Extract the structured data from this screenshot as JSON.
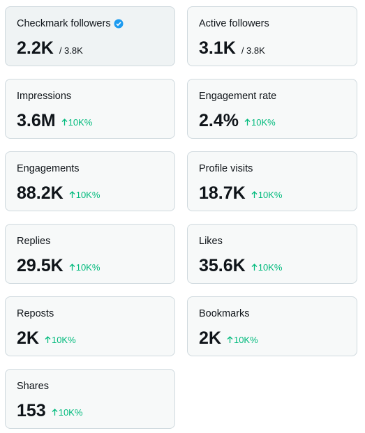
{
  "cards": [
    {
      "label": "Checkmark followers",
      "value": "2.2K",
      "total": "/ 3.8K"
    },
    {
      "label": "Active followers",
      "value": "3.1K",
      "total": "/ 3.8K"
    },
    {
      "label": "Impressions",
      "value": "3.6M",
      "change": "10K%"
    },
    {
      "label": "Engagement rate",
      "value": "2.4%",
      "change": "10K%"
    },
    {
      "label": "Engagements",
      "value": "88.2K",
      "change": "10K%"
    },
    {
      "label": "Profile visits",
      "value": "18.7K",
      "change": "10K%"
    },
    {
      "label": "Replies",
      "value": "29.5K",
      "change": "10K%"
    },
    {
      "label": "Likes",
      "value": "35.6K",
      "change": "10K%"
    },
    {
      "label": "Reposts",
      "value": "2K",
      "change": "10K%"
    },
    {
      "label": "Bookmarks",
      "value": "2K",
      "change": "10K%"
    },
    {
      "label": "Shares",
      "value": "153",
      "change": "10K%"
    }
  ]
}
